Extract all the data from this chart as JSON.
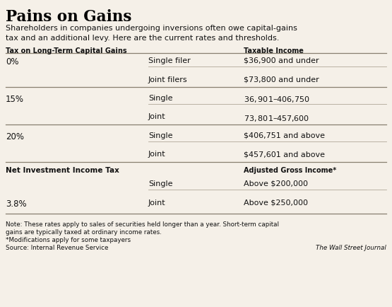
{
  "title": "Pains on Gains",
  "subtitle": "Shareholders in companies undergoing inversions often owe capital-gains\ntax and an additional levy. Here are the current rates and thresholds.",
  "bg_color": "#f5f0e8",
  "title_color": "#000000",
  "text_color": "#111111",
  "col1_header": "Tax on Long-Term Capital Gains",
  "col3_header": "Taxable Income",
  "rows": [
    {
      "rate": "0%",
      "filer": "Single filer",
      "income": "$36,900 and under"
    },
    {
      "rate": "",
      "filer": "Joint filers",
      "income": "$73,800 and under"
    },
    {
      "rate": "15%",
      "filer": "Single",
      "income": "$36,901 – $406,750"
    },
    {
      "rate": "",
      "filer": "Joint",
      "income": "$73,801 – $457,600"
    },
    {
      "rate": "20%",
      "filer": "Single",
      "income": "$406,751 and above"
    },
    {
      "rate": "",
      "filer": "Joint",
      "income": "$457,601 and above"
    }
  ],
  "niit_header": "Net Investment Income Tax",
  "niit_col3_header": "Adjusted Gross Income*",
  "niit_rows": [
    {
      "rate": "",
      "filer": "Single",
      "income": "Above $200,000"
    },
    {
      "rate": "3.8%",
      "filer": "Joint",
      "income": "Above $250,000"
    }
  ],
  "note1": "Note: These rates apply to sales of securities held longer than a year. Short-term capital",
  "note2": "gains are typically taxed at ordinary income rates.",
  "note3": "*Modifications apply for some taxpayers",
  "source": "Source: Internal Revenue Service",
  "wsj": "The Wall Street Journal",
  "divider_color": "#b0a898",
  "heavy_divider_color": "#888070"
}
